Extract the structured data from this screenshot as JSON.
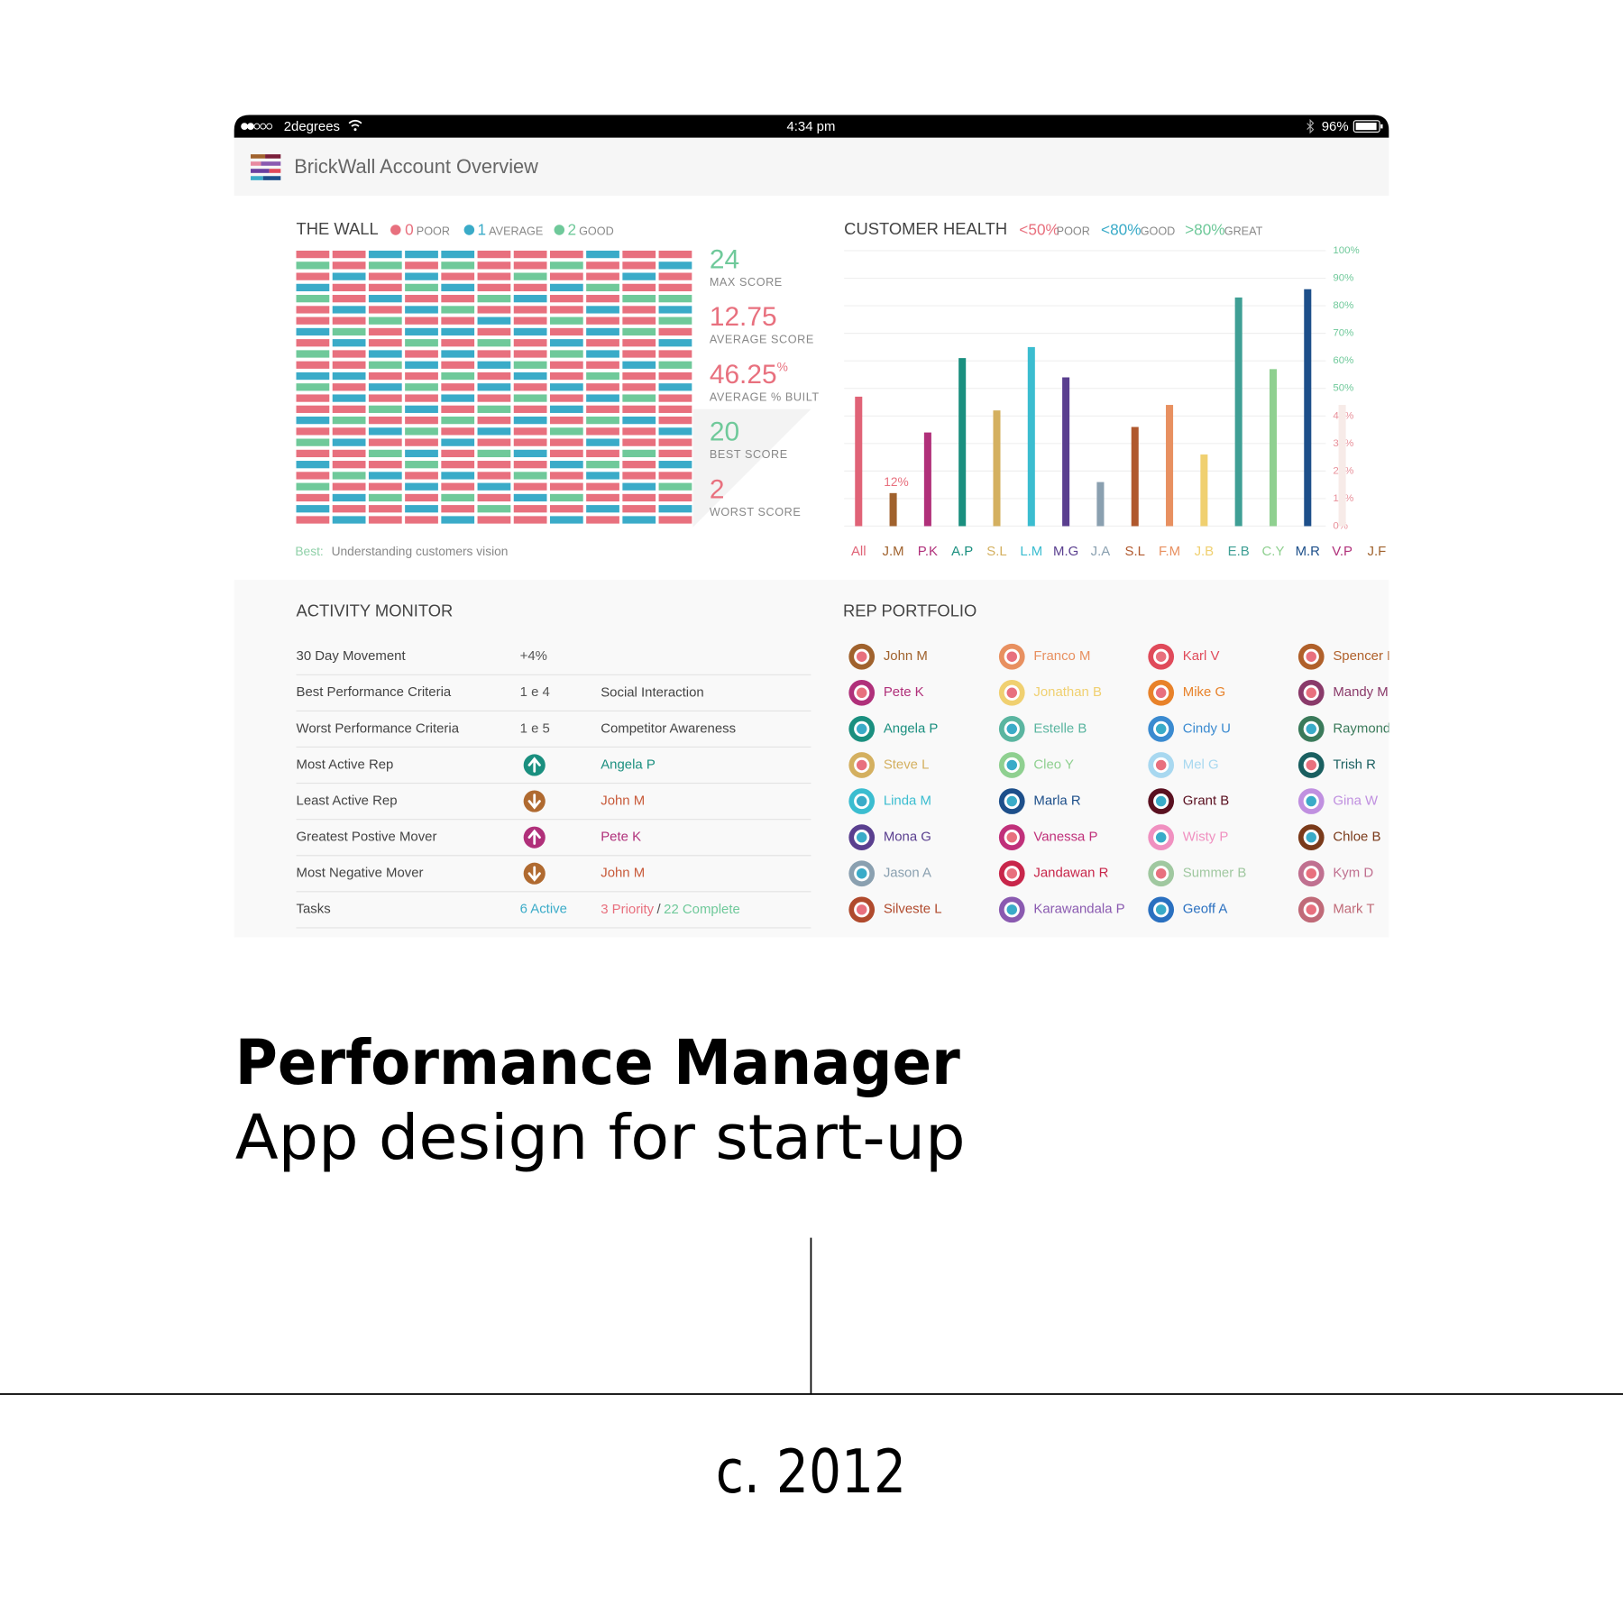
{
  "status_bar": {
    "carrier": "2degrees",
    "time": "4:34 pm",
    "battery": "96%"
  },
  "header": {
    "title": "BrickWall Account Overview"
  },
  "wall": {
    "title": "THE WALL",
    "legend": [
      {
        "value": 0,
        "label": "POOR",
        "color": "#e8707e"
      },
      {
        "value": 1,
        "label": "AVERAGE",
        "color": "#3aabc8"
      },
      {
        "value": 2,
        "label": "GOOD",
        "color": "#6fc99a"
      }
    ],
    "rows": [
      [
        0,
        0,
        1,
        1,
        1,
        0,
        0,
        0,
        1,
        0,
        0
      ],
      [
        2,
        0,
        2,
        0,
        2,
        0,
        0,
        2,
        0,
        0,
        1
      ],
      [
        0,
        1,
        0,
        1,
        0,
        0,
        2,
        0,
        0,
        1,
        0
      ],
      [
        1,
        0,
        0,
        2,
        1,
        0,
        0,
        1,
        2,
        0,
        0
      ],
      [
        2,
        0,
        1,
        0,
        0,
        2,
        1,
        0,
        0,
        2,
        2
      ],
      [
        0,
        1,
        0,
        1,
        2,
        0,
        0,
        0,
        1,
        0,
        1
      ],
      [
        0,
        0,
        2,
        0,
        0,
        1,
        0,
        2,
        0,
        0,
        2
      ],
      [
        1,
        2,
        0,
        1,
        1,
        0,
        1,
        0,
        1,
        2,
        0
      ],
      [
        0,
        1,
        0,
        2,
        0,
        2,
        0,
        1,
        0,
        0,
        1
      ],
      [
        2,
        0,
        1,
        0,
        1,
        0,
        0,
        2,
        1,
        0,
        0
      ],
      [
        0,
        0,
        2,
        1,
        0,
        1,
        2,
        0,
        0,
        1,
        2
      ],
      [
        1,
        1,
        0,
        0,
        2,
        0,
        1,
        0,
        2,
        0,
        0
      ],
      [
        2,
        0,
        1,
        2,
        0,
        1,
        0,
        1,
        0,
        0,
        1
      ],
      [
        0,
        1,
        0,
        0,
        1,
        0,
        2,
        0,
        1,
        2,
        0
      ],
      [
        0,
        0,
        2,
        1,
        0,
        2,
        0,
        1,
        0,
        0,
        0
      ],
      [
        1,
        2,
        0,
        0,
        2,
        0,
        1,
        0,
        2,
        1,
        0
      ],
      [
        0,
        0,
        1,
        2,
        0,
        1,
        0,
        2,
        0,
        0,
        1
      ],
      [
        2,
        1,
        0,
        0,
        1,
        0,
        0,
        0,
        1,
        0,
        0
      ],
      [
        0,
        0,
        2,
        1,
        0,
        2,
        1,
        0,
        0,
        2,
        0
      ],
      [
        1,
        0,
        0,
        2,
        0,
        0,
        0,
        1,
        2,
        0,
        1
      ],
      [
        0,
        2,
        1,
        0,
        1,
        0,
        2,
        0,
        1,
        0,
        0
      ],
      [
        2,
        0,
        0,
        1,
        0,
        1,
        0,
        0,
        0,
        1,
        2
      ],
      [
        0,
        1,
        2,
        0,
        2,
        0,
        1,
        2,
        0,
        0,
        0
      ],
      [
        1,
        0,
        0,
        1,
        0,
        2,
        0,
        0,
        1,
        0,
        1
      ],
      [
        0,
        1,
        0,
        0,
        1,
        0,
        0,
        1,
        0,
        1,
        0
      ]
    ],
    "stats": [
      {
        "value": 24,
        "label": "MAX SCORE",
        "color": "#6fc99a"
      },
      {
        "value": 12.75,
        "label": "AVERAGE SCORE",
        "color": "#e8707e"
      },
      {
        "value": 46.25,
        "unit": "%",
        "label": "AVERAGE % BUILT",
        "color": "#e8707e"
      },
      {
        "value": 20,
        "label": "BEST SCORE",
        "color": "#6fc99a"
      },
      {
        "value": 2,
        "label": "WORST SCORE",
        "color": "#e8707e"
      }
    ],
    "best_label": "Best:",
    "best_text": "Understanding customers vision"
  },
  "chart_data": {
    "type": "bar",
    "title": "CUSTOMER HEALTH",
    "legend": [
      {
        "label": "<50%",
        "caption": "POOR",
        "color": "#e8707e"
      },
      {
        "label": "<80%",
        "caption": "GOOD",
        "color": "#3aabc8"
      },
      {
        "label": ">80%",
        "caption": "GREAT",
        "color": "#6fc99a"
      }
    ],
    "categories": [
      "All",
      "J.M",
      "P.K",
      "A.P",
      "S.L",
      "L.M",
      "M.G",
      "J.A",
      "S.L",
      "F.M",
      "J.B",
      "E.B",
      "C.Y",
      "M.R",
      "V.P",
      "J.F"
    ],
    "values": [
      47,
      12,
      34,
      61,
      42,
      65,
      54,
      16,
      36,
      44,
      26,
      83,
      57,
      86,
      44,
      null
    ],
    "value_labels": [
      null,
      "12%",
      null,
      null,
      null,
      null,
      null,
      null,
      null,
      null,
      null,
      null,
      null,
      null,
      null,
      null
    ],
    "colors": [
      "#e06377",
      "#a0622d",
      "#b0307a",
      "#1a8f7f",
      "#d4b060",
      "#3bbdd0",
      "#5a3f8f",
      "#8aa0b0",
      "#b0582d",
      "#e89060",
      "#f0d070",
      "#3f9f95",
      "#8fd090",
      "#1d4f8a",
      "#f7ebe8",
      "#a0622d"
    ],
    "label_colors": [
      "#e06377",
      "#a0622d",
      "#b0307a",
      "#1a8f7f",
      "#d4b060",
      "#3bbdd0",
      "#5a3f8f",
      "#8aa0b0",
      "#b0582d",
      "#e89060",
      "#f0d070",
      "#3f9f95",
      "#8fd090",
      "#1d4f8a",
      "#b0307a",
      "#a0622d"
    ],
    "ylim": [
      0,
      100
    ],
    "yticks": [
      {
        "value": 0,
        "label": "0%"
      },
      {
        "value": 10,
        "label": "10%"
      },
      {
        "value": 20,
        "label": "20%"
      },
      {
        "value": 30,
        "label": "30%"
      },
      {
        "value": 40,
        "label": "40%"
      },
      {
        "value": 50,
        "label": "50%"
      },
      {
        "value": 60,
        "label": "60%"
      },
      {
        "value": 70,
        "label": "70%"
      },
      {
        "value": 80,
        "label": "80%"
      },
      {
        "value": 90,
        "label": "90%"
      },
      {
        "value": 100,
        "label": "100%"
      }
    ],
    "ytick_colors": [
      "#e8909a",
      "#e8909a",
      "#e8909a",
      "#e8909a",
      "#e8909a",
      "#6fc99a",
      "#6fc99a",
      "#6fc99a",
      "#6fc99a",
      "#6fc99a",
      "#6fc99a"
    ],
    "grid": true
  },
  "activity_monitor": {
    "title": "ACTIVITY MONITOR",
    "rows": [
      {
        "label": "30 Day Movement",
        "value": "+4%"
      },
      {
        "label": "Best Performance Criteria",
        "value": "1 e 4",
        "detail": "Social Interaction"
      },
      {
        "label": "Worst Performance Criteria",
        "value": "1 e 5",
        "detail": "Competitor Awareness"
      },
      {
        "label": "Most Active Rep",
        "trend": "up",
        "trend_color": "#1a8f7f",
        "detail": "Angela P",
        "detail_color": "#1a8f7f"
      },
      {
        "label": "Least Active Rep",
        "trend": "down",
        "trend_color": "#b06a30",
        "detail": "John M",
        "detail_color": "#c85a3a"
      },
      {
        "label": "Greatest Postive Mover",
        "trend": "up",
        "trend_color": "#b0307a",
        "detail": "Pete K",
        "detail_color": "#b0307a"
      },
      {
        "label": "Most Negative Mover",
        "trend": "down",
        "trend_color": "#b06a30",
        "detail": "John M",
        "detail_color": "#c85a3a"
      },
      {
        "label": "Tasks",
        "value": "6 Active",
        "value_color": "#3aabc8",
        "detail": "3 Priority",
        "detail_color": "#e8707e",
        "separator": "/",
        "extra": "22 Complete",
        "extra_color": "#6fc99a"
      }
    ]
  },
  "rep_portfolio": {
    "title": "REP PORTFOLIO",
    "reps": [
      {
        "name": "John M",
        "color": "#a0622d",
        "dot": "#e8707e"
      },
      {
        "name": "Pete K",
        "color": "#b0307a",
        "dot": "#e8707e"
      },
      {
        "name": "Angela P",
        "color": "#1a8f7f",
        "dot": "#3aabc8"
      },
      {
        "name": "Steve L",
        "color": "#d4b060",
        "dot": "#e8707e"
      },
      {
        "name": "Linda M",
        "color": "#3bbdd0",
        "dot": "#3aabc8"
      },
      {
        "name": "Mona G",
        "color": "#5a3f8f",
        "dot": "#3aabc8"
      },
      {
        "name": "Jason A",
        "color": "#8aa0b0",
        "dot": "#3aabc8"
      },
      {
        "name": "Silveste L",
        "color": "#b04a2d",
        "dot": "#e8707e"
      },
      {
        "name": "Franco M",
        "color": "#e89060",
        "dot": "#e8707e"
      },
      {
        "name": "Jonathan B",
        "color": "#f0d070",
        "dot": "#e8707e"
      },
      {
        "name": "Estelle B",
        "color": "#5ab5a0",
        "dot": "#3aabc8"
      },
      {
        "name": "Cleo Y",
        "color": "#8fd090",
        "dot": "#3aabc8"
      },
      {
        "name": "Marla R",
        "color": "#1d4f8a",
        "dot": "#3aabc8"
      },
      {
        "name": "Vanessa P",
        "color": "#c0307a",
        "dot": "#e8707e"
      },
      {
        "name": "Jandawan R",
        "color": "#c8264a",
        "dot": "#e8707e"
      },
      {
        "name": "Karawandala P",
        "color": "#8a5ab0",
        "dot": "#3aabc8"
      },
      {
        "name": "Karl V",
        "color": "#e04a5a",
        "dot": "#e8707e"
      },
      {
        "name": "Mike G",
        "color": "#e8822a",
        "dot": "#e8707e"
      },
      {
        "name": "Cindy U",
        "color": "#3a8ad0",
        "dot": "#3aabc8"
      },
      {
        "name": "Mel G",
        "color": "#a8d8f0",
        "dot": "#e8707e"
      },
      {
        "name": "Grant B",
        "color": "#5a1020",
        "dot": "#3aabc8"
      },
      {
        "name": "Wisty P",
        "color": "#f090c0",
        "dot": "#3aabc8"
      },
      {
        "name": "Summer B",
        "color": "#a0c8a0",
        "dot": "#e8707e"
      },
      {
        "name": "Geoff A",
        "color": "#2a70c0",
        "dot": "#3aabc8"
      },
      {
        "name": "Spencer M",
        "color": "#b0602a",
        "dot": "#e8707e"
      },
      {
        "name": "Mandy M",
        "color": "#8a3a6a",
        "dot": "#e8707e"
      },
      {
        "name": "Raymond",
        "color": "#3a7a5a",
        "dot": "#3aabc8"
      },
      {
        "name": "Trish R",
        "color": "#1a5f60",
        "dot": "#e8707e"
      },
      {
        "name": "Gina W",
        "color": "#c090e0",
        "dot": "#3aabc8"
      },
      {
        "name": "Chloe B",
        "color": "#7a3a1a",
        "dot": "#3aabc8"
      },
      {
        "name": "Kym D",
        "color": "#c07090",
        "dot": "#e8707e"
      },
      {
        "name": "Mark T",
        "color": "#c06a78",
        "dot": "#e8707e"
      }
    ]
  },
  "caption": {
    "title": "Performance Manager",
    "subtitle": "App design for start-up",
    "date": "c. 2012"
  }
}
